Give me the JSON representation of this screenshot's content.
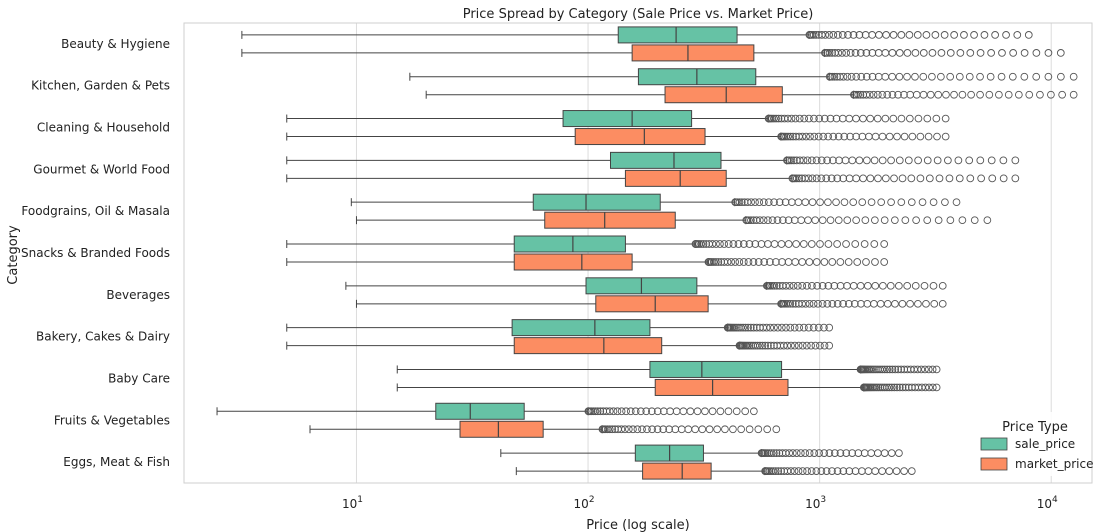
{
  "chart_data": {
    "type": "boxplot",
    "orientation": "horizontal",
    "title": "Price Spread by Category (Sale Price vs. Market Price)",
    "xlabel": "Price (log scale)",
    "ylabel": "Category",
    "x_scale": "log",
    "xlim": [
      1.8,
      15000
    ],
    "x_ticks": [
      {
        "value": 10,
        "base": "10",
        "exp": "1"
      },
      {
        "value": 100,
        "base": "10",
        "exp": "2"
      },
      {
        "value": 1000,
        "base": "10",
        "exp": "3"
      },
      {
        "value": 10000,
        "base": "10",
        "exp": "4"
      }
    ],
    "grid": "vertical",
    "legend": {
      "title": "Price Type",
      "placement": "bottom-right",
      "entries": [
        {
          "name": "sale_price",
          "color": "#66c2a5"
        },
        {
          "name": "market_price",
          "color": "#fc8d62"
        }
      ]
    },
    "categories": [
      "Beauty & Hygiene",
      "Kitchen, Garden & Pets",
      "Cleaning & Household",
      "Gourmet & World Food",
      "Foodgrains, Oil & Masala",
      "Snacks & Branded Foods",
      "Beverages",
      "Bakery, Cakes & Dairy",
      "Baby Care",
      "Fruits & Vegetables",
      "Eggs, Meat & Fish"
    ],
    "series": [
      {
        "name": "sale_price",
        "color": "#66c2a5",
        "boxes": [
          {
            "min": 3.2,
            "q1": 135,
            "median": 240,
            "q3": 440,
            "max": 900,
            "fliers_from": 900,
            "fliers_to": 8000
          },
          {
            "min": 17,
            "q1": 165,
            "median": 295,
            "q3": 530,
            "max": 1100,
            "fliers_from": 1100,
            "fliers_to": 12500
          },
          {
            "min": 5,
            "q1": 78,
            "median": 155,
            "q3": 280,
            "max": 600,
            "fliers_from": 600,
            "fliers_to": 3500
          },
          {
            "min": 5,
            "q1": 125,
            "median": 235,
            "q3": 375,
            "max": 720,
            "fliers_from": 720,
            "fliers_to": 7000
          },
          {
            "min": 9.5,
            "q1": 58,
            "median": 98,
            "q3": 205,
            "max": 430,
            "fliers_from": 430,
            "fliers_to": 3900
          },
          {
            "min": 5,
            "q1": 48,
            "median": 86,
            "q3": 145,
            "max": 290,
            "fliers_from": 290,
            "fliers_to": 1900
          },
          {
            "min": 9,
            "q1": 98,
            "median": 170,
            "q3": 295,
            "max": 590,
            "fliers_from": 590,
            "fliers_to": 3400
          },
          {
            "min": 5,
            "q1": 47,
            "median": 107,
            "q3": 185,
            "max": 400,
            "fliers_from": 400,
            "fliers_to": 1100
          },
          {
            "min": 15,
            "q1": 185,
            "median": 310,
            "q3": 685,
            "max": 1500,
            "fliers_from": 1500,
            "fliers_to": 3200
          },
          {
            "min": 2.5,
            "q1": 22,
            "median": 31,
            "q3": 53,
            "max": 100,
            "fliers_from": 100,
            "fliers_to": 520
          },
          {
            "min": 42,
            "q1": 160,
            "median": 225,
            "q3": 315,
            "max": 560,
            "fliers_from": 560,
            "fliers_to": 2200
          }
        ]
      },
      {
        "name": "market_price",
        "color": "#fc8d62",
        "boxes": [
          {
            "min": 3.2,
            "q1": 155,
            "median": 270,
            "q3": 520,
            "max": 1050,
            "fliers_from": 1050,
            "fliers_to": 11000
          },
          {
            "min": 20,
            "q1": 215,
            "median": 395,
            "q3": 690,
            "max": 1400,
            "fliers_from": 1400,
            "fliers_to": 12500
          },
          {
            "min": 5,
            "q1": 88,
            "median": 175,
            "q3": 320,
            "max": 680,
            "fliers_from": 680,
            "fliers_to": 3500
          },
          {
            "min": 5,
            "q1": 145,
            "median": 250,
            "q3": 395,
            "max": 760,
            "fliers_from": 760,
            "fliers_to": 7000
          },
          {
            "min": 10,
            "q1": 65,
            "median": 118,
            "q3": 238,
            "max": 480,
            "fliers_from": 480,
            "fliers_to": 5300
          },
          {
            "min": 5,
            "q1": 48,
            "median": 94,
            "q3": 155,
            "max": 330,
            "fliers_from": 330,
            "fliers_to": 1900
          },
          {
            "min": 10,
            "q1": 108,
            "median": 195,
            "q3": 330,
            "max": 680,
            "fliers_from": 680,
            "fliers_to": 3400
          },
          {
            "min": 5,
            "q1": 48,
            "median": 117,
            "q3": 208,
            "max": 450,
            "fliers_from": 450,
            "fliers_to": 1100
          },
          {
            "min": 15,
            "q1": 195,
            "median": 345,
            "q3": 730,
            "max": 1550,
            "fliers_from": 1550,
            "fliers_to": 3200
          },
          {
            "min": 6.3,
            "q1": 28,
            "median": 41,
            "q3": 64,
            "max": 115,
            "fliers_from": 115,
            "fliers_to": 650
          },
          {
            "min": 49,
            "q1": 172,
            "median": 255,
            "q3": 340,
            "max": 580,
            "fliers_from": 580,
            "fliers_to": 2500
          }
        ]
      }
    ]
  }
}
